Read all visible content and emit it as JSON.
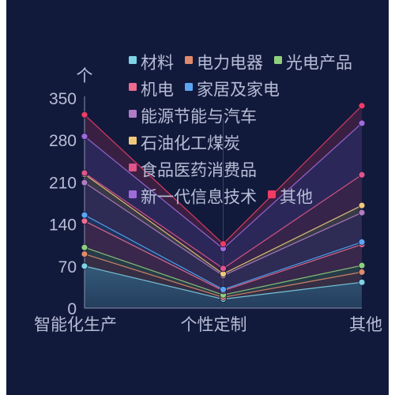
{
  "chart_data": {
    "type": "area",
    "stacked": true,
    "unit_label": "个",
    "categories": [
      "智能化生产",
      "个性定制",
      "其他"
    ],
    "ylim": [
      0,
      350
    ],
    "yticks": [
      "0",
      "70",
      "140",
      "210",
      "280",
      "350"
    ],
    "ytick_values": [
      0,
      70,
      140,
      210,
      280,
      350
    ],
    "series": [
      {
        "name": "材料",
        "color": "#7ed3e6",
        "values": [
          70,
          15,
          43
        ]
      },
      {
        "name": "电力电器",
        "color": "#e08a6b",
        "values": [
          20,
          3,
          17
        ]
      },
      {
        "name": "光电产品",
        "color": "#8fd07e",
        "values": [
          11,
          4,
          11
        ]
      },
      {
        "name": "机电",
        "color": "#ee6b8f",
        "values": [
          44,
          7,
          35
        ]
      },
      {
        "name": "家居及家电",
        "color": "#5aa6f5",
        "values": [
          10,
          2,
          4
        ]
      },
      {
        "name": "能源节能与汽车",
        "color": "#b07cc4",
        "values": [
          54,
          23,
          49
        ]
      },
      {
        "name": "石油化工煤炭",
        "color": "#f0c97a",
        "values": [
          14,
          3,
          12
        ]
      },
      {
        "name": "食品医药消费品",
        "color": "#e0558a",
        "values": [
          2,
          9,
          51
        ]
      },
      {
        "name": "新一代信息技术",
        "color": "#a06adc",
        "values": [
          61,
          33,
          86
        ]
      },
      {
        "name": "其他",
        "color": "#f03c64",
        "values": [
          36,
          8,
          29
        ]
      }
    ],
    "legend_position": "top-right",
    "grid": false
  }
}
